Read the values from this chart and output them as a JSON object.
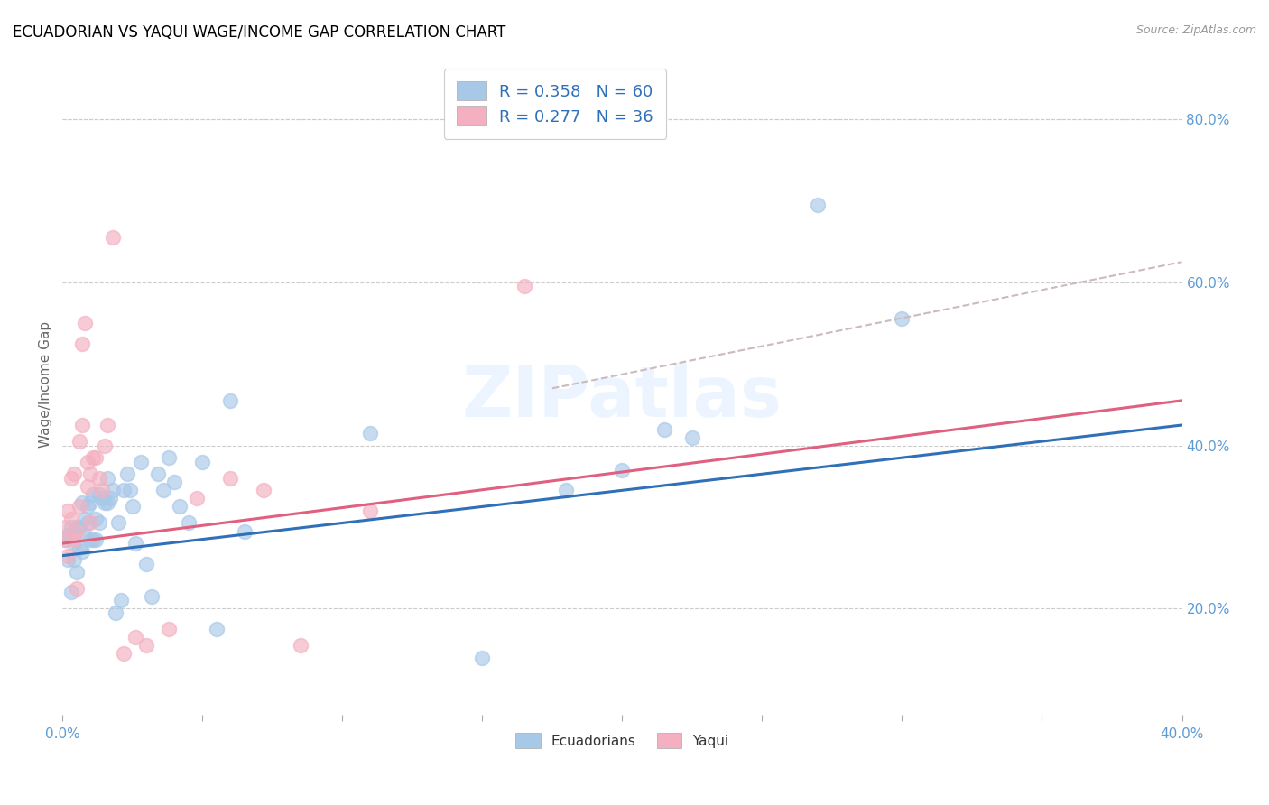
{
  "title": "ECUADORIAN VS YAQUI WAGE/INCOME GAP CORRELATION CHART",
  "source": "Source: ZipAtlas.com",
  "ylabel": "Wage/Income Gap",
  "xlim": [
    0.0,
    0.4
  ],
  "ylim": [
    0.07,
    0.88
  ],
  "xtick_vals": [
    0.0,
    0.05,
    0.1,
    0.15,
    0.2,
    0.25,
    0.3,
    0.35,
    0.4
  ],
  "xtick_labels": [
    "0.0%",
    "",
    "",
    "",
    "",
    "",
    "",
    "",
    "40.0%"
  ],
  "yticks_right": [
    0.2,
    0.4,
    0.6,
    0.8
  ],
  "ytick_labels_right": [
    "20.0%",
    "40.0%",
    "60.0%",
    "80.0%"
  ],
  "blue_color": "#a8c8e8",
  "pink_color": "#f4b0c0",
  "blue_line_color": "#3070b8",
  "pink_line_color": "#e06080",
  "R_blue": 0.358,
  "N_blue": 60,
  "R_pink": 0.277,
  "N_pink": 36,
  "watermark": "ZIPatlas",
  "blue_scatter_x": [
    0.001,
    0.002,
    0.002,
    0.003,
    0.003,
    0.004,
    0.004,
    0.005,
    0.005,
    0.006,
    0.006,
    0.007,
    0.007,
    0.008,
    0.008,
    0.009,
    0.009,
    0.01,
    0.01,
    0.011,
    0.011,
    0.012,
    0.012,
    0.013,
    0.013,
    0.014,
    0.015,
    0.016,
    0.016,
    0.017,
    0.018,
    0.019,
    0.02,
    0.021,
    0.022,
    0.023,
    0.024,
    0.025,
    0.026,
    0.028,
    0.03,
    0.032,
    0.034,
    0.036,
    0.038,
    0.04,
    0.042,
    0.045,
    0.05,
    0.055,
    0.06,
    0.065,
    0.11,
    0.15,
    0.18,
    0.2,
    0.215,
    0.225,
    0.27,
    0.3
  ],
  "blue_scatter_y": [
    0.285,
    0.29,
    0.26,
    0.3,
    0.22,
    0.26,
    0.28,
    0.3,
    0.245,
    0.275,
    0.3,
    0.27,
    0.33,
    0.29,
    0.31,
    0.325,
    0.305,
    0.285,
    0.33,
    0.34,
    0.285,
    0.31,
    0.285,
    0.34,
    0.305,
    0.335,
    0.33,
    0.36,
    0.33,
    0.335,
    0.345,
    0.195,
    0.305,
    0.21,
    0.345,
    0.365,
    0.345,
    0.325,
    0.28,
    0.38,
    0.255,
    0.215,
    0.365,
    0.345,
    0.385,
    0.355,
    0.325,
    0.305,
    0.38,
    0.175,
    0.455,
    0.295,
    0.415,
    0.14,
    0.345,
    0.37,
    0.42,
    0.41,
    0.695,
    0.555
  ],
  "pink_scatter_x": [
    0.001,
    0.001,
    0.002,
    0.002,
    0.003,
    0.003,
    0.004,
    0.004,
    0.005,
    0.005,
    0.006,
    0.006,
    0.007,
    0.007,
    0.008,
    0.009,
    0.009,
    0.01,
    0.01,
    0.011,
    0.012,
    0.013,
    0.014,
    0.015,
    0.016,
    0.018,
    0.022,
    0.026,
    0.03,
    0.038,
    0.048,
    0.06,
    0.072,
    0.085,
    0.11,
    0.165
  ],
  "pink_scatter_y": [
    0.285,
    0.3,
    0.265,
    0.32,
    0.31,
    0.36,
    0.365,
    0.285,
    0.295,
    0.225,
    0.325,
    0.405,
    0.425,
    0.525,
    0.55,
    0.38,
    0.35,
    0.365,
    0.305,
    0.385,
    0.385,
    0.36,
    0.345,
    0.4,
    0.425,
    0.655,
    0.145,
    0.165,
    0.155,
    0.175,
    0.335,
    0.36,
    0.345,
    0.155,
    0.32,
    0.595
  ],
  "blue_trend_x": [
    0.0,
    0.4
  ],
  "blue_trend_y": [
    0.265,
    0.425
  ],
  "pink_trend_x": [
    0.0,
    0.4
  ],
  "pink_trend_y": [
    0.28,
    0.455
  ],
  "dash_trend_x": [
    0.175,
    0.4
  ],
  "dash_trend_y": [
    0.47,
    0.625
  ],
  "legend_text_color": "#3070b8",
  "axis_tick_color": "#5b9bd5",
  "ylabel_color": "#666666",
  "grid_color": "#cccccc"
}
